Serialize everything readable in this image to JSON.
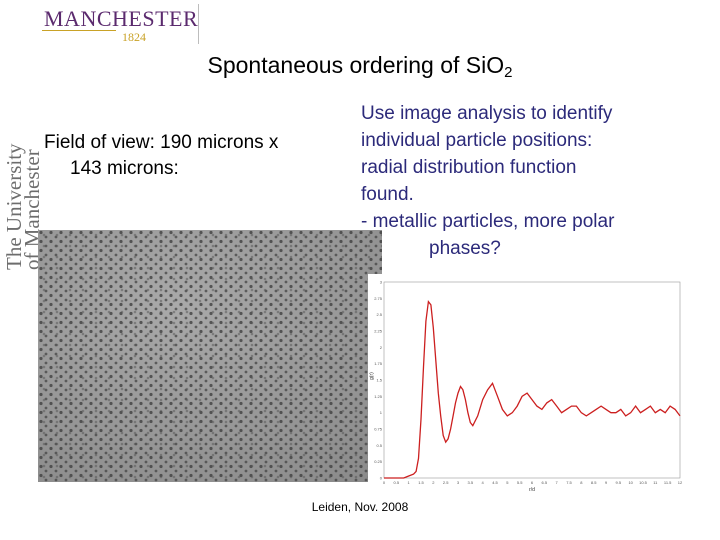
{
  "brand": {
    "name": "MANCHESTER",
    "year": "1824"
  },
  "side_logo": {
    "line1": "The University",
    "line2": "of Manchester"
  },
  "title": {
    "text": "Spontaneous ordering of SiO",
    "subscript": "2"
  },
  "field_of_view": {
    "line1": "Field of view: 190 microns x",
    "line2": "143  microns:"
  },
  "analysis": {
    "lines": [
      "Use image analysis to identify",
      "individual particle positions:",
      "radial distribution function",
      "found.",
      "- metallic particles, more polar",
      "phases?"
    ]
  },
  "footer": "Leiden, Nov. 2008",
  "chart_data": {
    "type": "line",
    "title": "",
    "xlabel": "r/d",
    "ylabel": "g(r)",
    "xlim": [
      0,
      12
    ],
    "ylim": [
      0,
      3
    ],
    "x_ticks": [
      "0",
      "0.5",
      "1",
      "1.5",
      "2",
      "2.5",
      "3",
      "3.5",
      "4",
      "4.5",
      "5",
      "5.5",
      "6",
      "6.5",
      "7",
      "7.5",
      "8",
      "8.5",
      "9",
      "9.5",
      "10",
      "10.5",
      "11",
      "11.5",
      "12"
    ],
    "y_ticks": [
      "0",
      "0.25",
      "0.5",
      "0.75",
      "1",
      "1.25",
      "1.5",
      "1.75",
      "2",
      "2.25",
      "2.5",
      "2.75",
      "3"
    ],
    "series": [
      {
        "color": "#cc1f1f",
        "x": [
          0,
          0.4,
          0.8,
          1.0,
          1.2,
          1.3,
          1.4,
          1.5,
          1.6,
          1.7,
          1.8,
          1.9,
          2.0,
          2.1,
          2.2,
          2.3,
          2.4,
          2.5,
          2.6,
          2.7,
          2.8,
          2.9,
          3.0,
          3.1,
          3.2,
          3.3,
          3.4,
          3.5,
          3.6,
          3.8,
          4.0,
          4.2,
          4.4,
          4.6,
          4.8,
          5.0,
          5.2,
          5.4,
          5.6,
          5.8,
          6.0,
          6.2,
          6.4,
          6.6,
          6.8,
          7.0,
          7.2,
          7.4,
          7.6,
          7.8,
          8.0,
          8.2,
          8.4,
          8.6,
          8.8,
          9.0,
          9.2,
          9.4,
          9.6,
          9.8,
          10.0,
          10.2,
          10.4,
          10.6,
          10.8,
          11.0,
          11.2,
          11.4,
          11.6,
          11.8,
          12.0
        ],
        "y": [
          0,
          0,
          0,
          0.03,
          0.06,
          0.1,
          0.3,
          0.9,
          1.7,
          2.4,
          2.7,
          2.65,
          2.3,
          1.8,
          1.3,
          0.95,
          0.65,
          0.55,
          0.6,
          0.75,
          0.95,
          1.15,
          1.3,
          1.4,
          1.35,
          1.2,
          1.0,
          0.85,
          0.8,
          0.95,
          1.2,
          1.35,
          1.45,
          1.25,
          1.05,
          0.95,
          1.0,
          1.1,
          1.25,
          1.3,
          1.2,
          1.1,
          1.05,
          1.15,
          1.2,
          1.1,
          1.0,
          1.05,
          1.1,
          1.1,
          1.0,
          0.95,
          1.0,
          1.05,
          1.1,
          1.05,
          1.0,
          1.0,
          1.05,
          0.95,
          1.0,
          1.1,
          1.0,
          1.05,
          1.1,
          1.0,
          1.05,
          1.0,
          1.1,
          1.05,
          0.95
        ]
      }
    ]
  }
}
